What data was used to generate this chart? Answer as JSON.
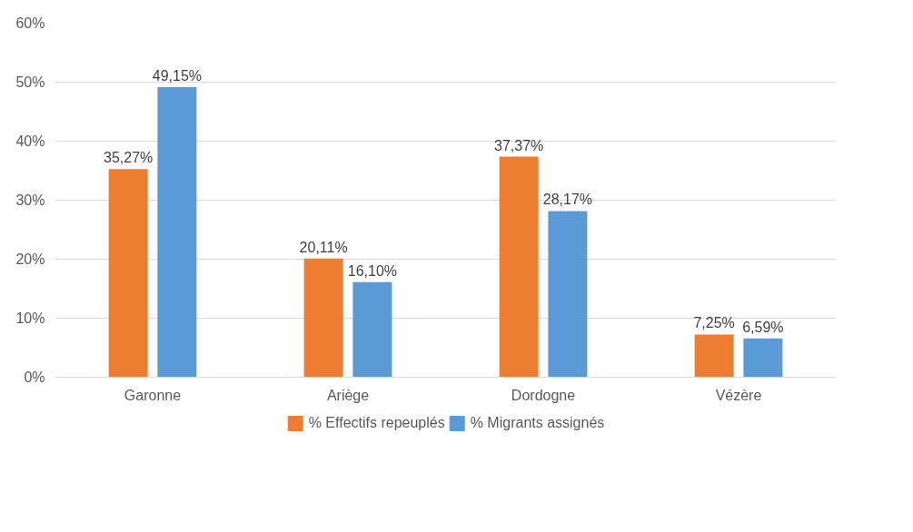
{
  "chart_data": {
    "type": "bar",
    "categories": [
      "Garonne",
      "Ariège",
      "Dordogne",
      "Vézère"
    ],
    "series": [
      {
        "name": "% Effectifs repeuplés",
        "color": "#ed7d31",
        "values": [
          35.27,
          20.11,
          37.37,
          7.25
        ],
        "value_labels": [
          "35,27%",
          "20,11%",
          "37,37%",
          "7,25%"
        ]
      },
      {
        "name": "% Migrants assignés",
        "color": "#5b9bd5",
        "values": [
          49.15,
          16.1,
          28.17,
          6.59
        ],
        "value_labels": [
          "49,15%",
          "16,10%",
          "28,17%",
          "6,59%"
        ]
      }
    ],
    "ylim": [
      0,
      60
    ],
    "yticks": [
      {
        "value": 0,
        "label": "0%"
      },
      {
        "value": 10,
        "label": "10%"
      },
      {
        "value": 20,
        "label": "20%"
      },
      {
        "value": 30,
        "label": "30%"
      },
      {
        "value": 40,
        "label": "40%"
      },
      {
        "value": 50,
        "label": "50%"
      },
      {
        "value": 60,
        "label": "60%"
      }
    ],
    "grid": "y",
    "legend": "bottom"
  }
}
